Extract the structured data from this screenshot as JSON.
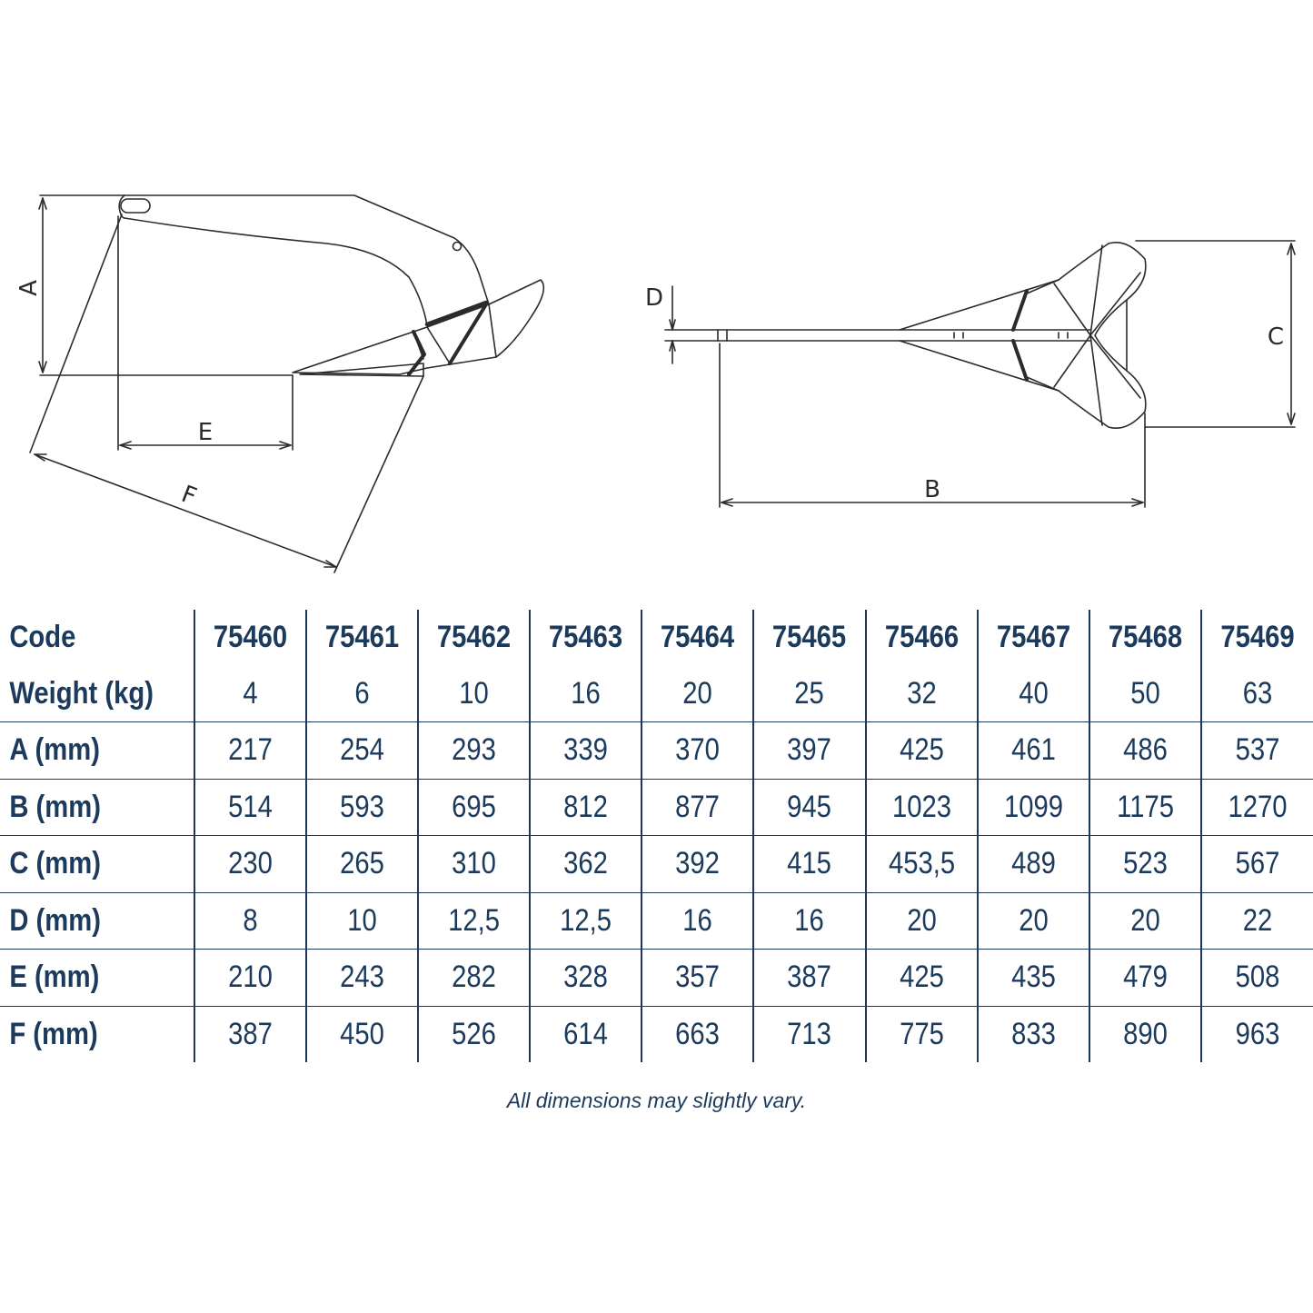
{
  "diagram": {
    "labels": {
      "a": "A",
      "b": "B",
      "c": "C",
      "d": "D",
      "e": "E",
      "f": "F"
    }
  },
  "table": {
    "header_label": "Code",
    "codes": [
      "75460",
      "75461",
      "75462",
      "75463",
      "75464",
      "75465",
      "75466",
      "75467",
      "75468",
      "75469"
    ],
    "rows": [
      {
        "label": "Weight (kg)",
        "values": [
          "4",
          "6",
          "10",
          "16",
          "20",
          "25",
          "32",
          "40",
          "50",
          "63"
        ]
      },
      {
        "label": "A (mm)",
        "values": [
          "217",
          "254",
          "293",
          "339",
          "370",
          "397",
          "425",
          "461",
          "486",
          "537"
        ]
      },
      {
        "label": "B (mm)",
        "values": [
          "514",
          "593",
          "695",
          "812",
          "877",
          "945",
          "1023",
          "1099",
          "1175",
          "1270"
        ]
      },
      {
        "label": "C (mm)",
        "values": [
          "230",
          "265",
          "310",
          "362",
          "392",
          "415",
          "453,5",
          "489",
          "523",
          "567"
        ]
      },
      {
        "label": "D (mm)",
        "values": [
          "8",
          "10",
          "12,5",
          "12,5",
          "16",
          "16",
          "20",
          "20",
          "20",
          "22"
        ]
      },
      {
        "label": "E (mm)",
        "values": [
          "210",
          "243",
          "282",
          "328",
          "357",
          "387",
          "425",
          "435",
          "479",
          "508"
        ]
      },
      {
        "label": "F (mm)",
        "values": [
          "387",
          "450",
          "526",
          "614",
          "663",
          "713",
          "775",
          "833",
          "890",
          "963"
        ]
      }
    ]
  },
  "note": "All dimensions may slightly vary.",
  "colors": {
    "text": "#1b3a5c",
    "drawing": "#2b2b2b"
  }
}
